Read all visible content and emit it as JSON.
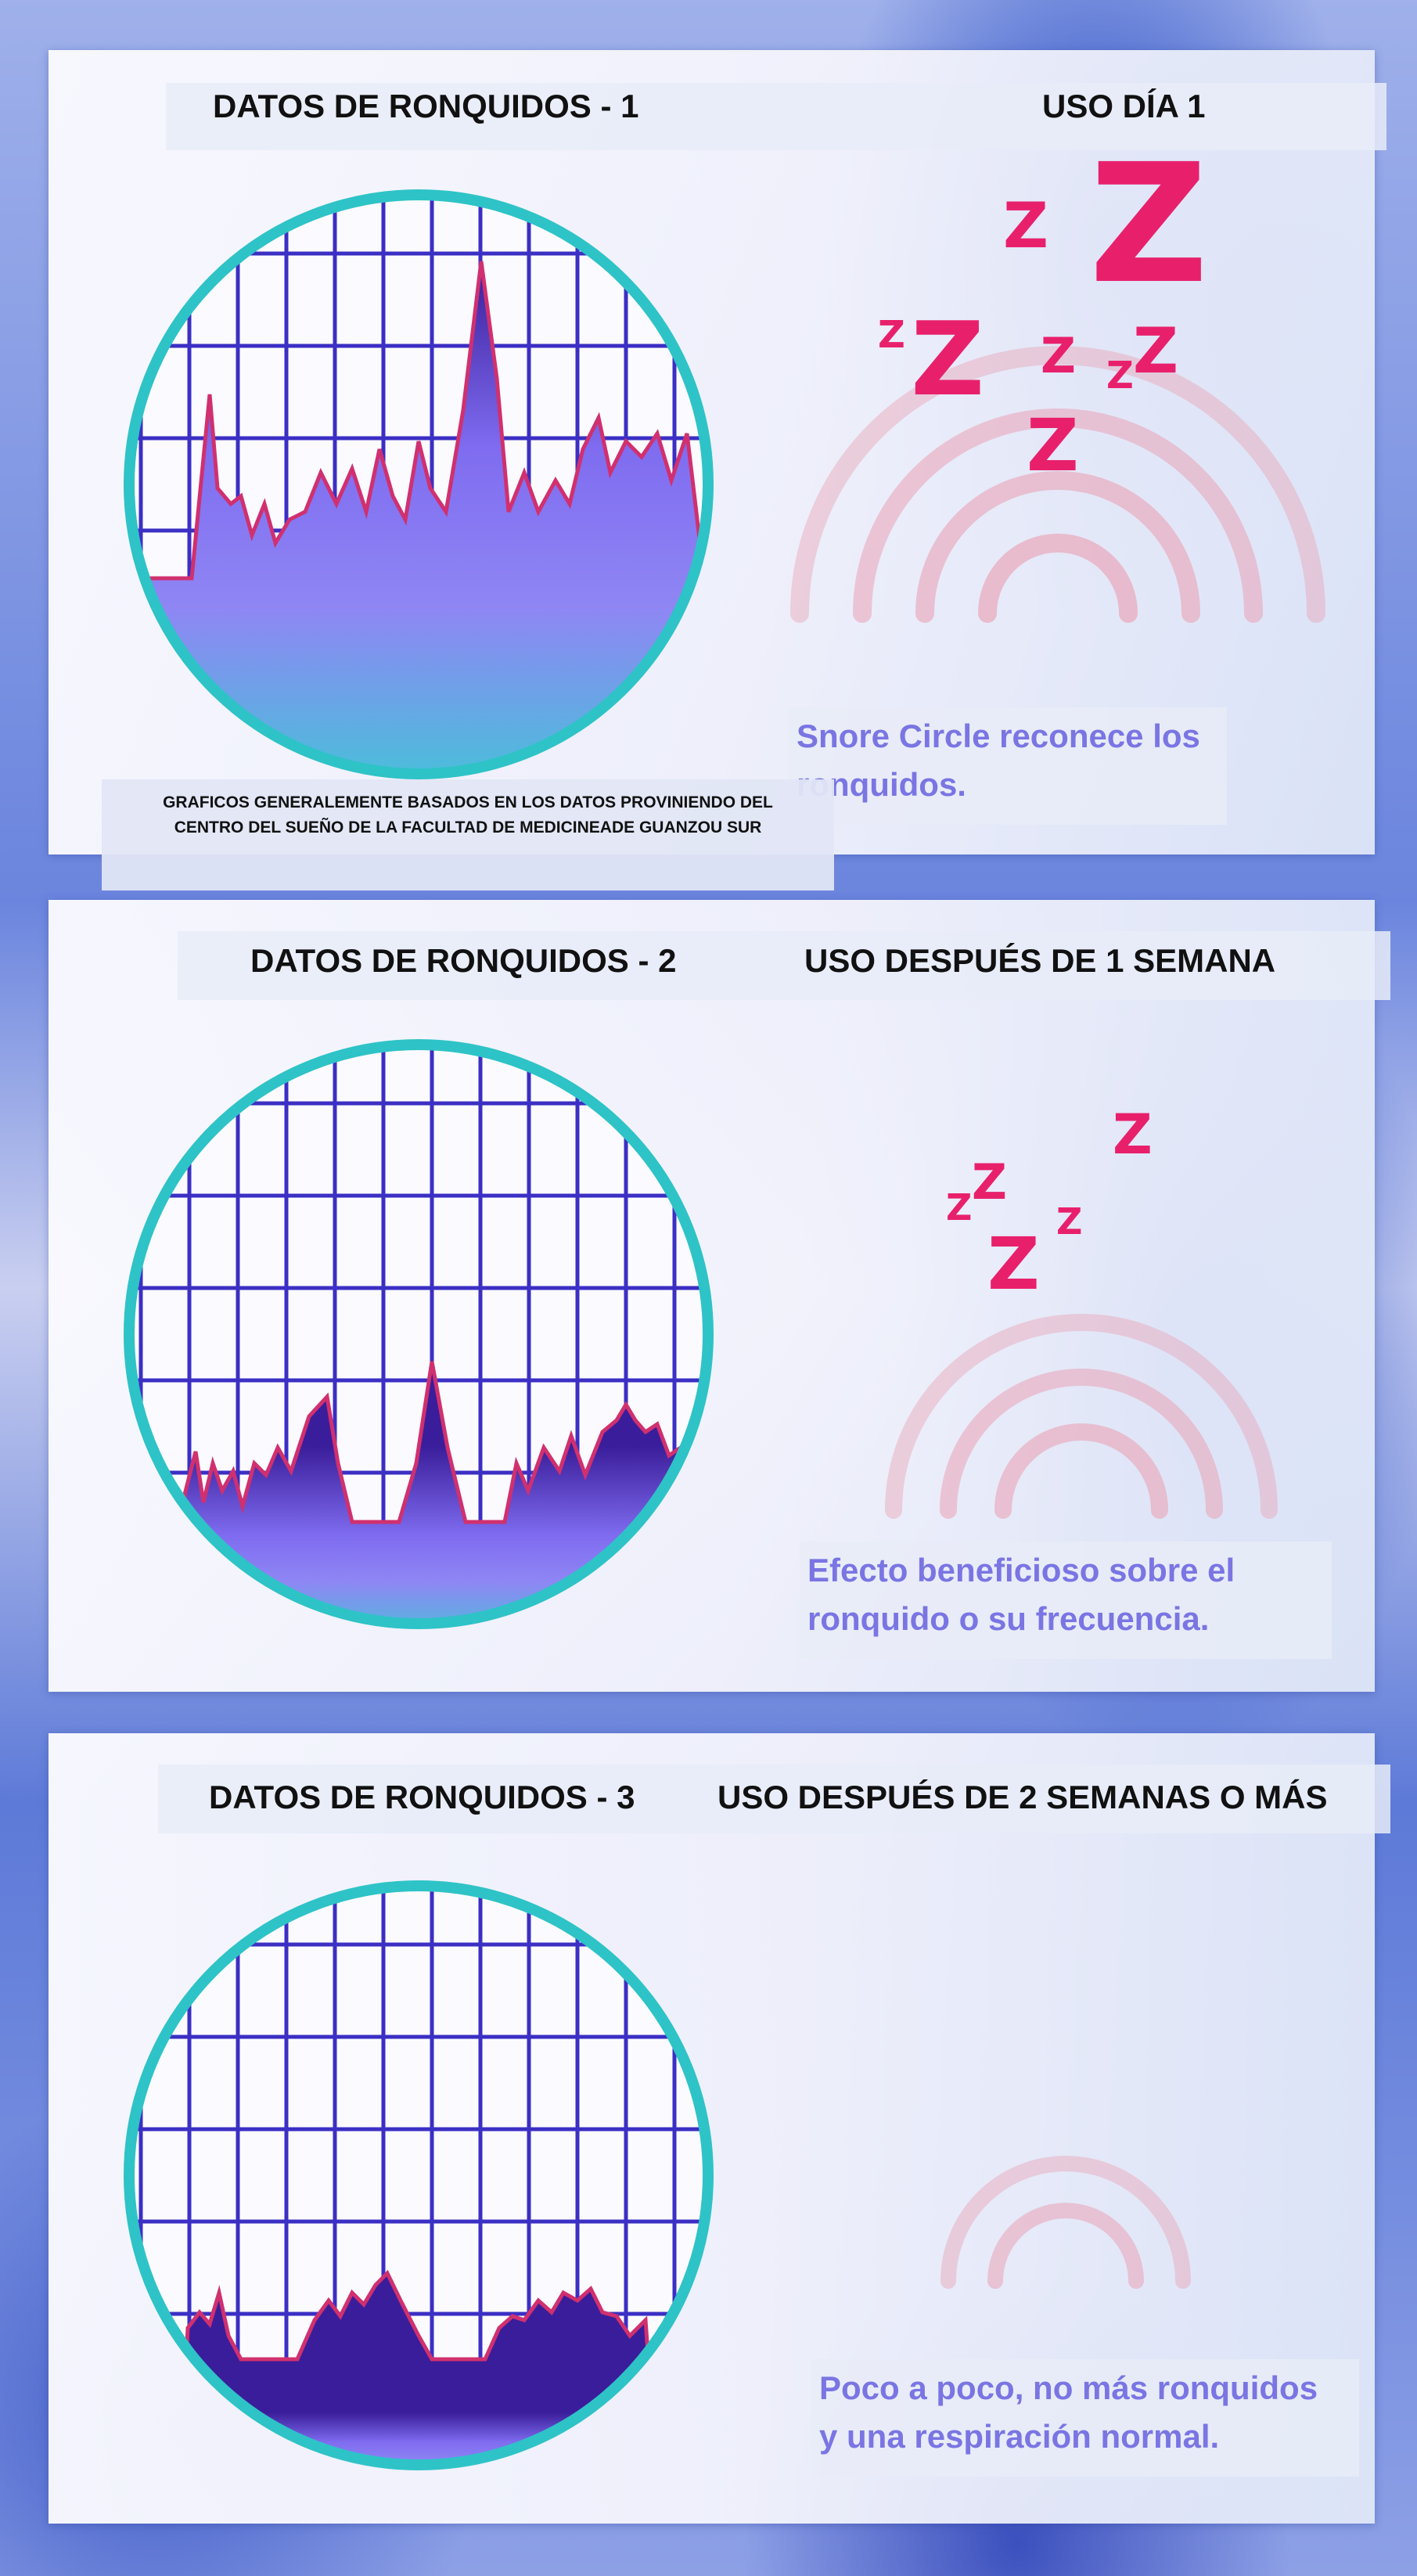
{
  "sections": [
    {
      "title": "DATOS DE RONQUIDOS - 1",
      "usage": "USO  DÍA 1",
      "caption_line1": "Snore Circle reconece los",
      "caption_line2": "ronquidos.",
      "icon": "snore-z-icon"
    },
    {
      "title": "DATOS DE RONQUIDOS - 2",
      "usage": "USO DESPUÉS DE 1 SEMANA",
      "caption_line1": "Efecto beneficioso sobre el",
      "caption_line2": "ronquido o su frecuencia.",
      "icon": "snore-z-icon"
    },
    {
      "title": "DATOS DE RONQUIDOS - 3",
      "usage": "USO DESPUÉS DE 2 SEMANAS O MÁS",
      "caption_line1": "Poco a poco, no más ronquidos",
      "caption_line2": "y una respiración normal.",
      "icon": "sound-wave-icon"
    }
  ],
  "source_note": {
    "line1": "GRAFICOS GENERALEMENTE BASADOS EN LOS DATOS PROVINIENDO DEL",
    "line2": "CENTRO DEL SUEÑO DE LA FACULTAD DE MEDICINEADE GUANZOU SUR"
  },
  "z_glyph": "Z",
  "colors": {
    "ring": "#2ec3c7",
    "grid": "#3b2fc4",
    "fill_top": "#3a1d9a",
    "fill_bottom": "#8a7cf2",
    "line": "#d0306f",
    "z": "#e8206c",
    "caption": "#7a75e3"
  }
}
